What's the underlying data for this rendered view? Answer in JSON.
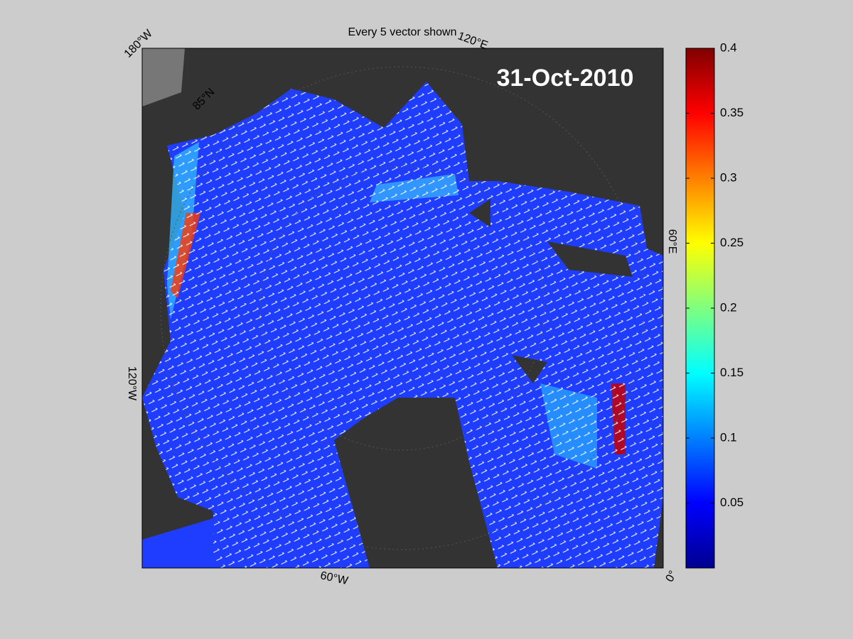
{
  "map": {
    "title": "Every 5 vector shown",
    "date": "31-Oct-2010",
    "labels": [
      "180°W",
      "120°E",
      "60°E",
      "0°",
      "60°W",
      "120°W",
      "85°N"
    ]
  },
  "colorbar": {
    "clim": [
      0,
      0.4
    ],
    "ticks": [
      0.05,
      0.1,
      0.15,
      0.2,
      0.25,
      0.3,
      0.35,
      0.4
    ],
    "colormap": "jet"
  }
}
